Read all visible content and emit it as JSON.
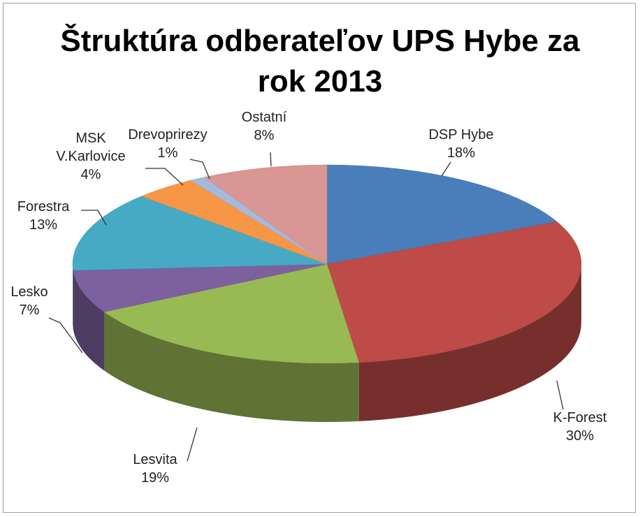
{
  "chart_data": {
    "type": "pie",
    "title": "Štruktúra odberateľov UPS Hybe za rok 2013",
    "categories": [
      "DSP Hybe",
      "K-Forest",
      "Lesvita",
      "Lesko",
      "Forestra",
      "MSK V.Karlovice",
      "Drevoprirezy",
      "Ostatní"
    ],
    "values": [
      18,
      30,
      19,
      7,
      13,
      4,
      1,
      8
    ],
    "value_labels": [
      "18%",
      "30%",
      "19%",
      "7%",
      "13%",
      "4%",
      "1%",
      "8%"
    ],
    "colors": [
      "#4a7ebb",
      "#be4b48",
      "#98b954",
      "#7d60a0",
      "#46aac5",
      "#f79646",
      "#a5b9db",
      "#d99694"
    ]
  }
}
